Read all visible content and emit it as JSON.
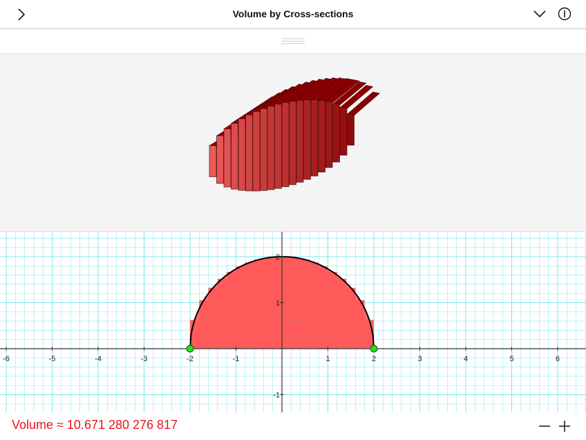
{
  "header": {
    "title": "Volume by Cross-sections",
    "icons": [
      "chevron-right-icon",
      "chevron-down-icon",
      "info-icon"
    ]
  },
  "graph": {
    "x_ticks": [
      "-6",
      "-5",
      "-4",
      "-3",
      "-2",
      "-1",
      "1",
      "2",
      "3",
      "4",
      "5",
      "6"
    ],
    "y_ticks": [
      "2",
      "1",
      "-1"
    ],
    "x_range": [
      -6.1,
      6.6
    ],
    "y_range": [
      -1.35,
      2.5
    ],
    "function": "sqrt(4-x^2)",
    "interval": [
      -2,
      2
    ],
    "slices": 20,
    "points": [
      {
        "x": -2,
        "y": 0
      },
      {
        "x": 2,
        "y": 0
      }
    ],
    "colors": {
      "fill": "#ff5a5a",
      "grid": "#7fe6ec",
      "point": "#22dd22",
      "curve": "#000000"
    }
  },
  "solid": {
    "color": "#a00000",
    "slices": 20
  },
  "footer": {
    "volume_text": "Volume ≈ 10.671 280 276 817",
    "zoom_out": "—",
    "zoom_in": "+"
  }
}
